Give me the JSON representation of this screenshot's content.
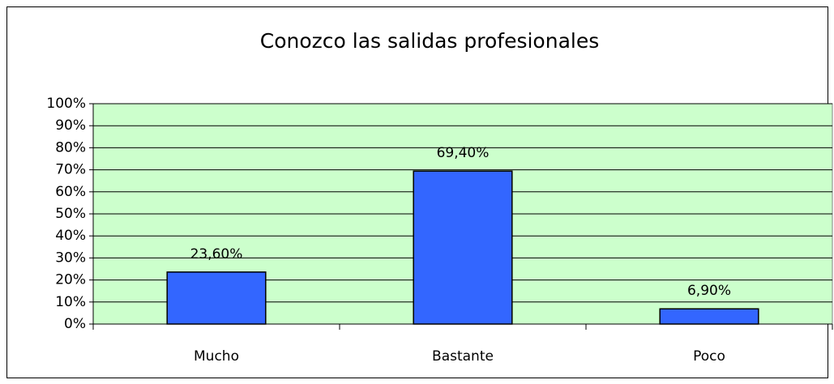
{
  "chart_data": {
    "type": "bar",
    "title": "Conozco las salidas profesionales",
    "categories": [
      "Mucho",
      "Bastante",
      "Poco"
    ],
    "values": [
      23.6,
      69.4,
      6.9
    ],
    "value_labels": [
      "23,60%",
      "69,40%",
      "6,90%"
    ],
    "color": "#3366ff",
    "ylim": [
      0,
      100
    ],
    "yticks": [
      {
        "value": 0,
        "label": "0%"
      },
      {
        "value": 10,
        "label": "10%"
      },
      {
        "value": 20,
        "label": "20%"
      },
      {
        "value": 30,
        "label": "30%"
      },
      {
        "value": 40,
        "label": "40%"
      },
      {
        "value": 50,
        "label": "50%"
      },
      {
        "value": 60,
        "label": "60%"
      },
      {
        "value": 70,
        "label": "70%"
      },
      {
        "value": 80,
        "label": "80%"
      },
      {
        "value": 90,
        "label": "90%"
      },
      {
        "value": 100,
        "label": "100%"
      }
    ],
    "grid": true
  }
}
